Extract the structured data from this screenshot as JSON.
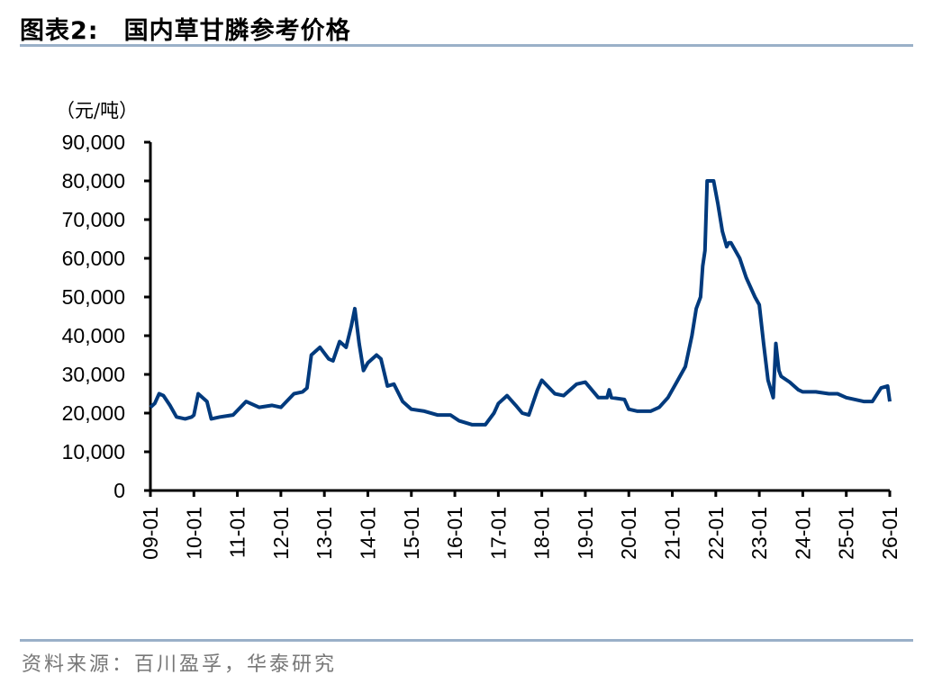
{
  "header": {
    "figure_no": "图表2:",
    "title": "国内草甘膦参考价格"
  },
  "footer": {
    "source": "资料来源：百川盈孚，华泰研究"
  },
  "colors": {
    "line": "#003A7D",
    "rule": "#9AB0C8",
    "axis": "#000000"
  },
  "chart_data": {
    "type": "line",
    "title": "国内草甘膦参考价格",
    "xlabel": "",
    "ylabel": "（元/吨）",
    "ylim": [
      0,
      90000
    ],
    "yticks": [
      0,
      10000,
      20000,
      30000,
      40000,
      50000,
      60000,
      70000,
      80000,
      90000
    ],
    "ytick_labels": [
      "0",
      "10,000",
      "20,000",
      "30,000",
      "40,000",
      "50,000",
      "60,000",
      "70,000",
      "80,000",
      "90,000"
    ],
    "xtick_labels": [
      "09-01",
      "10-01",
      "11-01",
      "12-01",
      "13-01",
      "14-01",
      "15-01",
      "16-01",
      "17-01",
      "18-01",
      "19-01",
      "20-01",
      "21-01",
      "22-01",
      "23-01",
      "24-01",
      "25-01",
      "26-01"
    ],
    "grid": false,
    "legend": null,
    "series": [
      {
        "name": "草甘膦参考价格",
        "x": [
          2009.0,
          2009.1,
          2009.2,
          2009.3,
          2009.45,
          2009.6,
          2009.8,
          2009.95,
          2010.0,
          2010.1,
          2010.3,
          2010.4,
          2010.6,
          2010.9,
          2011.2,
          2011.5,
          2011.8,
          2012.0,
          2012.3,
          2012.5,
          2012.6,
          2012.7,
          2012.9,
          2013.1,
          2013.2,
          2013.35,
          2013.5,
          2013.62,
          2013.7,
          2013.8,
          2013.9,
          2014.0,
          2014.2,
          2014.3,
          2014.45,
          2014.6,
          2014.8,
          2015.0,
          2015.3,
          2015.6,
          2015.9,
          2016.1,
          2016.4,
          2016.7,
          2016.9,
          2017.0,
          2017.2,
          2017.4,
          2017.55,
          2017.7,
          2017.9,
          2018.0,
          2018.3,
          2018.5,
          2018.8,
          2019.0,
          2019.3,
          2019.5,
          2019.55,
          2019.6,
          2019.9,
          2020.0,
          2020.2,
          2020.5,
          2020.7,
          2020.9,
          2021.1,
          2021.3,
          2021.45,
          2021.55,
          2021.65,
          2021.7,
          2021.75,
          2021.8,
          2021.95,
          2022.05,
          2022.15,
          2022.25,
          2022.3,
          2022.35,
          2022.55,
          2022.7,
          2022.9,
          2023.0,
          2023.1,
          2023.2,
          2023.32,
          2023.38,
          2023.45,
          2023.5,
          2023.7,
          2023.9,
          2024.0,
          2024.3,
          2024.6,
          2024.8,
          2025.0,
          2025.2,
          2025.4,
          2025.6,
          2025.8,
          2025.95,
          2026.0
        ],
        "values": [
          21500,
          22500,
          25000,
          24500,
          22000,
          19000,
          18500,
          19000,
          19500,
          25000,
          23000,
          18500,
          19000,
          19500,
          23000,
          21500,
          22000,
          21500,
          25000,
          25500,
          26500,
          35000,
          37000,
          34000,
          33500,
          38500,
          37000,
          42500,
          47000,
          38000,
          31000,
          33000,
          35000,
          34000,
          27000,
          27500,
          23000,
          21000,
          20500,
          19500,
          19500,
          18000,
          17000,
          17000,
          20000,
          22500,
          24500,
          22000,
          20000,
          19500,
          26000,
          28500,
          25000,
          24500,
          27500,
          28000,
          24000,
          24000,
          26000,
          24000,
          23500,
          21000,
          20500,
          20500,
          21500,
          24000,
          28000,
          32000,
          40000,
          47000,
          50000,
          58000,
          62000,
          80000,
          80000,
          74000,
          67000,
          63000,
          64000,
          64000,
          60000,
          55000,
          50000,
          48000,
          38000,
          28500,
          24000,
          38000,
          31000,
          29500,
          28000,
          26000,
          25500,
          25500,
          25000,
          25000,
          24000,
          23500,
          23000,
          23000,
          26500,
          27000,
          23000
        ]
      }
    ]
  }
}
